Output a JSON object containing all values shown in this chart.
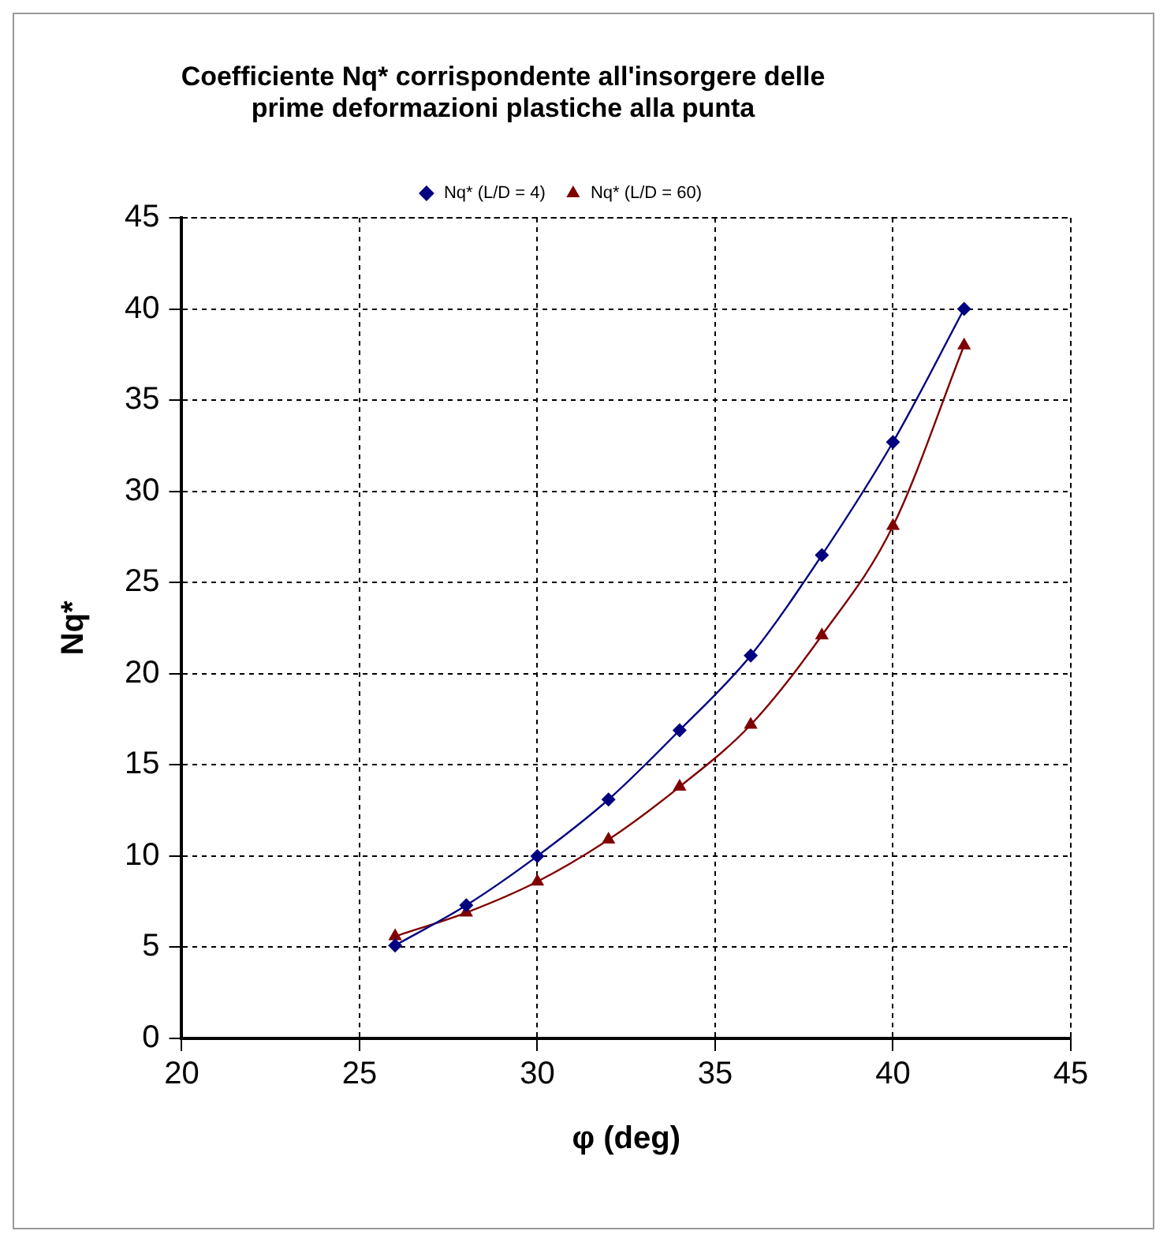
{
  "chart_data": {
    "type": "line",
    "title": "Coefficiente Nq* corrispondente all'insorgere delle prime deformazioni plastiche alla punta",
    "xlabel": "φ (deg)",
    "ylabel": "Nq*",
    "x": [
      26,
      28,
      30,
      32,
      34,
      36,
      38,
      40,
      42
    ],
    "series": [
      {
        "name": "Nq* (L/D = 4)",
        "color": "#000080",
        "marker": "diamond",
        "values": [
          5.1,
          7.3,
          10.0,
          13.1,
          16.9,
          21.0,
          26.5,
          32.7,
          40.0
        ]
      },
      {
        "name": "Nq* (L/D = 60)",
        "color": "#800000",
        "marker": "triangle",
        "values": [
          5.6,
          6.9,
          8.6,
          10.9,
          13.8,
          17.2,
          22.1,
          28.1,
          38.0
        ]
      }
    ],
    "xlim": [
      20,
      45
    ],
    "xticks": [
      20,
      25,
      30,
      35,
      40,
      45
    ],
    "ylim": [
      0,
      45
    ],
    "yticks": [
      0,
      5,
      10,
      15,
      20,
      25,
      30,
      35,
      40,
      45
    ],
    "grid": true,
    "legend": "top",
    "line_style": "solid"
  }
}
